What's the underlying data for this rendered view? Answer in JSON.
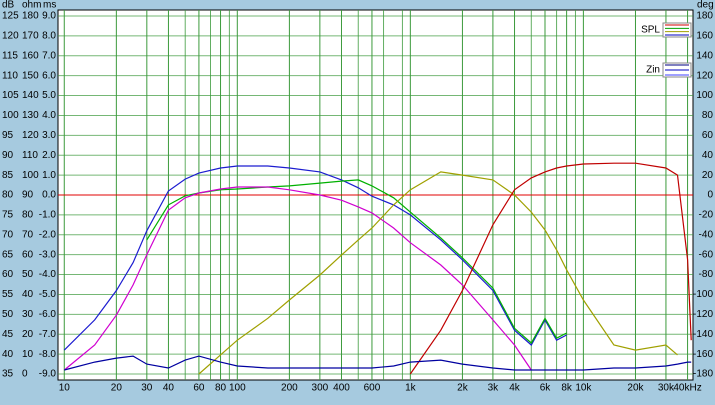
{
  "chart_data": {
    "type": "line",
    "axis_titles": {
      "y": "dB",
      "y2": "ohm",
      "y3": "ms",
      "y4": "deg"
    },
    "x": [
      10,
      15,
      20,
      25,
      30,
      40,
      50,
      60,
      80,
      100,
      150,
      200,
      300,
      400,
      500,
      600,
      800,
      1000,
      1500,
      2000,
      3000,
      4000,
      5000,
      6000,
      7000,
      8000,
      10000,
      15000,
      20000,
      30000,
      35000,
      40000,
      42000
    ],
    "xlim": [
      9.2,
      43000
    ],
    "log_x": true,
    "xticks": [
      10,
      20,
      30,
      40,
      60,
      80,
      100,
      200,
      300,
      400,
      600,
      {
        "value": 1000,
        "label": "1k"
      },
      {
        "value": 2000,
        "label": "2k"
      },
      {
        "value": 3000,
        "label": "3k"
      },
      {
        "value": 4000,
        "label": "4k"
      },
      {
        "value": 6000,
        "label": "6k"
      },
      {
        "value": 8000,
        "label": "8k"
      },
      {
        "value": 10000,
        "label": "10k"
      },
      {
        "value": 20000,
        "label": "20k"
      },
      {
        "value": 30000,
        "label": "30k"
      },
      {
        "value": 40000,
        "label": "40kHz"
      }
    ],
    "xgrid_minor": [
      50,
      70,
      90,
      500,
      700,
      900,
      5000,
      7000,
      9000
    ],
    "ylim": [
      35,
      125
    ],
    "yticks": [
      125,
      120,
      115,
      110,
      105,
      100,
      95,
      90,
      85,
      80,
      75,
      70,
      65,
      60,
      55,
      50,
      45,
      40,
      35
    ],
    "y2lim": [
      0,
      180
    ],
    "y2ticks": [
      180,
      170,
      160,
      150,
      140,
      130,
      120,
      110,
      100,
      90,
      80,
      70,
      60,
      50,
      40,
      30,
      20,
      10,
      0
    ],
    "y3lim": [
      -9,
      9
    ],
    "y3ticks": [
      {
        "value": 9,
        "label": "9.0"
      },
      {
        "value": 8,
        "label": "8.0"
      },
      {
        "value": 7,
        "label": "7.0"
      },
      {
        "value": 6,
        "label": "6.0"
      },
      {
        "value": 5,
        "label": "5.0"
      },
      {
        "value": 4,
        "label": "4.0"
      },
      {
        "value": 3,
        "label": "3.0"
      },
      {
        "value": 2,
        "label": "2.0"
      },
      {
        "value": 1,
        "label": "1.0"
      },
      {
        "value": 0,
        "label": "0.0"
      },
      {
        "value": -1,
        "label": "-1.0"
      },
      {
        "value": -2,
        "label": "-2.0"
      },
      {
        "value": -3,
        "label": "-3.0"
      },
      {
        "value": -4,
        "label": "-4.0"
      },
      {
        "value": -5,
        "label": "-5.0"
      },
      {
        "value": -6,
        "label": "-6.0"
      },
      {
        "value": -7,
        "label": "-7.0"
      },
      {
        "value": -8,
        "label": "-8.0"
      },
      {
        "value": -9,
        "label": "-9.0"
      }
    ],
    "y4lim": [
      -180,
      180
    ],
    "y4ticks": [
      180,
      160,
      140,
      120,
      100,
      80,
      60,
      40,
      20,
      0,
      -20,
      -40,
      -60,
      -80,
      -100,
      -120,
      -140,
      -160,
      -180
    ],
    "zero_line": {
      "axis": "y4",
      "value": 0,
      "color": "#e00000"
    },
    "grid": true,
    "grid_color": "#3c9a3c",
    "legend": [
      {
        "name": "SPL",
        "colors": [
          "#d00000",
          "#00a000",
          "#a0a000",
          "#0000c0"
        ]
      },
      {
        "name": "Zin",
        "colors": [
          "#000080",
          "#0000c0",
          "#4040ff"
        ]
      }
    ],
    "series": [
      {
        "color": "#1c1cd0",
        "values": [
          41,
          48.6,
          56,
          63,
          71,
          81,
          84,
          85.5,
          86.8,
          87.3,
          87.3,
          86.8,
          85.8,
          83.8,
          81.8,
          79.7,
          77.5,
          75,
          68.7,
          63.7,
          56,
          46,
          42.3,
          48.6,
          43.5,
          44.8,
          null,
          null,
          null,
          null,
          null,
          null,
          null
        ]
      },
      {
        "color": "#00b000",
        "values": [
          null,
          null,
          null,
          null,
          68.7,
          77.5,
          79.8,
          80.5,
          81.3,
          81.5,
          82,
          82.3,
          83,
          83.5,
          83.8,
          82.3,
          79.3,
          75.7,
          69.2,
          64.2,
          56.6,
          46.5,
          42.8,
          49,
          44,
          45.3,
          null,
          null,
          null,
          null,
          null,
          null,
          null
        ]
      },
      {
        "color": "#d000d0",
        "values": [
          36,
          42.3,
          49.8,
          57.4,
          65,
          76.2,
          79.3,
          80.5,
          81.5,
          82,
          82,
          81.3,
          80,
          78.7,
          77,
          75.5,
          71.7,
          68,
          62.4,
          57.4,
          48.6,
          42.3,
          36,
          null,
          null,
          null,
          null,
          null,
          null,
          null,
          null,
          null,
          null
        ]
      },
      {
        "color": "#a0a000",
        "values": [
          null,
          null,
          null,
          null,
          null,
          null,
          null,
          35,
          39.8,
          43.5,
          49,
          53.6,
          59.9,
          64.9,
          68.7,
          71.7,
          77.5,
          81.3,
          85.8,
          85,
          83.8,
          80,
          75.7,
          71.2,
          66.2,
          61.2,
          53.6,
          42.3,
          41,
          42.3,
          39.8,
          null,
          null
        ]
      },
      {
        "color": "#c00000",
        "values": [
          null,
          null,
          null,
          null,
          null,
          null,
          null,
          null,
          null,
          null,
          null,
          null,
          null,
          null,
          null,
          null,
          null,
          35,
          46,
          56,
          72.5,
          81.3,
          84.3,
          85.8,
          86.8,
          87.3,
          87.8,
          88,
          88,
          86.8,
          85,
          63.7,
          43.5
        ]
      },
      {
        "color": "#0000a0",
        "axis": "y2",
        "values": [
          2,
          6,
          8,
          9,
          5,
          3,
          7,
          9,
          6,
          4,
          3,
          3,
          3,
          3,
          3,
          3,
          4,
          6,
          7,
          5,
          3,
          2,
          2,
          2,
          2,
          2,
          2,
          3,
          3,
          4,
          5,
          6,
          6
        ]
      }
    ]
  }
}
